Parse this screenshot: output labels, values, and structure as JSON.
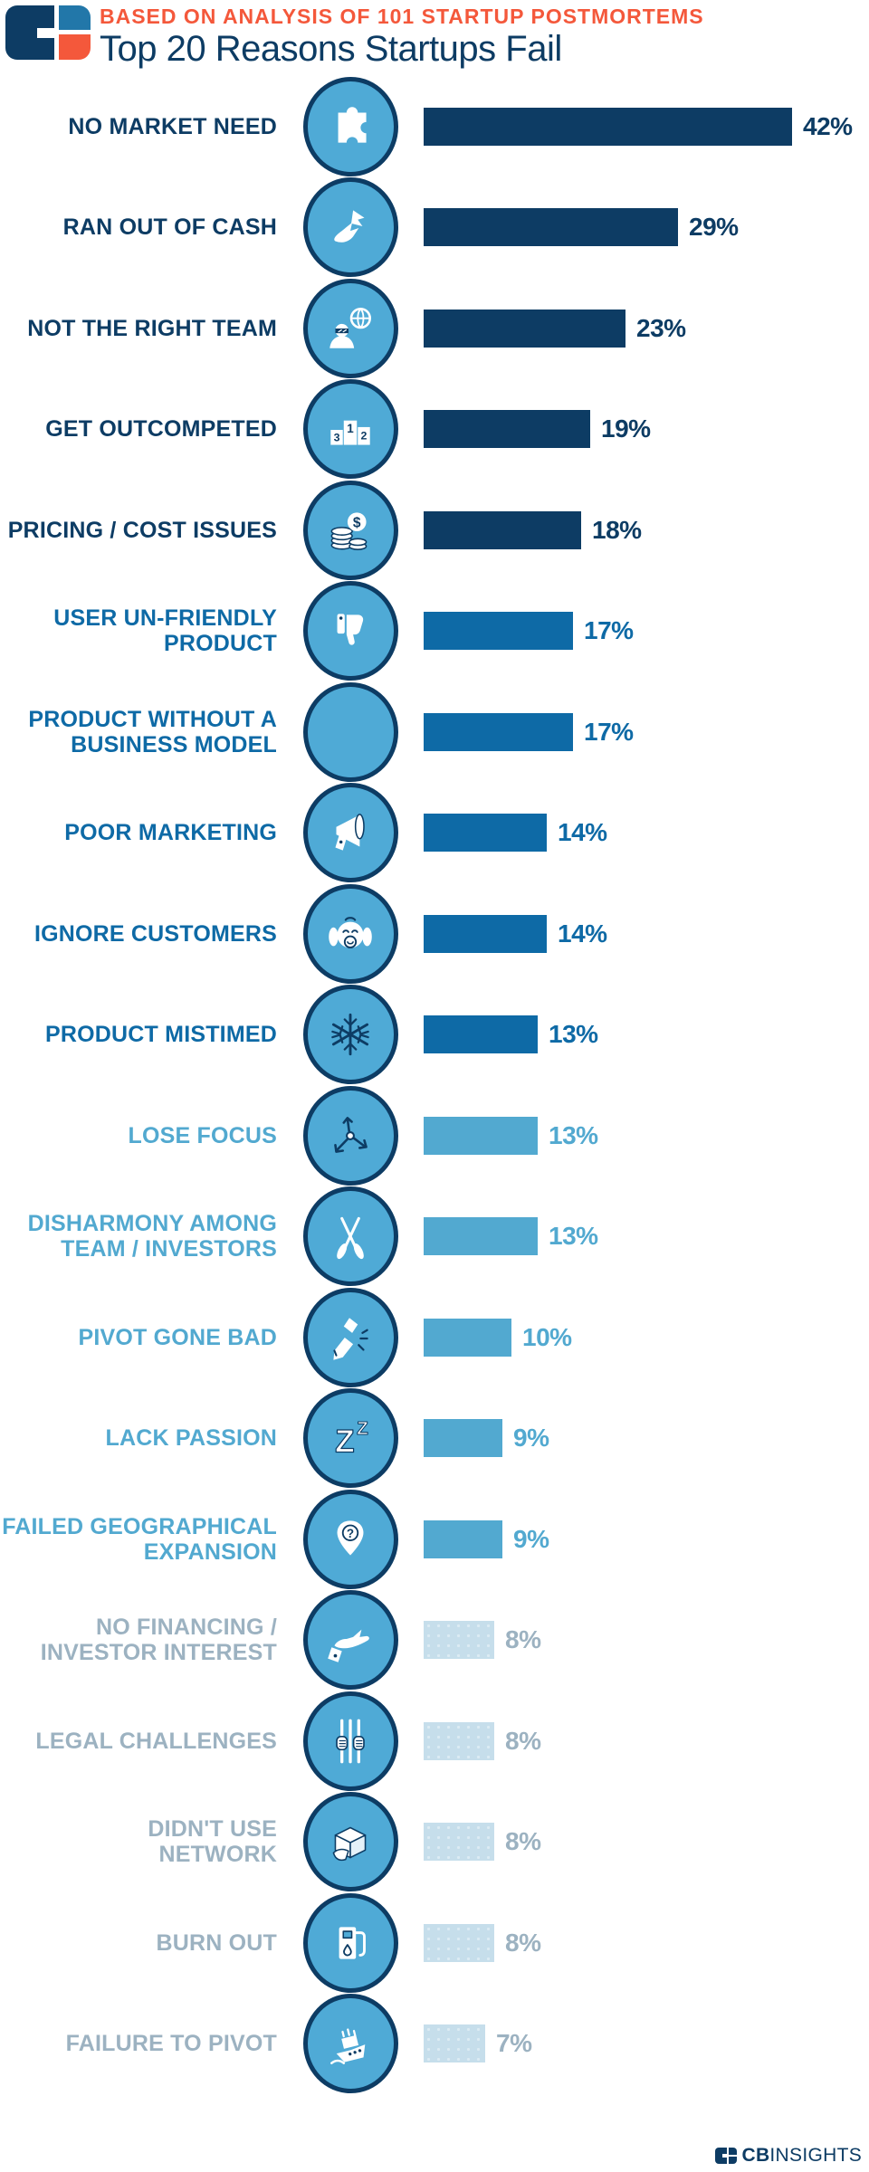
{
  "header": {
    "kicker": "BASED ON ANALYSIS OF 101 STARTUP POSTMORTEMS",
    "title": "Top 20 Reasons Startups Fail"
  },
  "footer": {
    "brand_bold": "CB",
    "brand_light": "INSIGHTS"
  },
  "palette": {
    "navy": "#0d3c64",
    "medium_blue": "#0e6aa6",
    "light_blue": "#52a9d0",
    "pale_blue": "#c6deeb",
    "gray_label": "#9cb2c1",
    "orange": "#f4583b",
    "icon_fill": "#4faad6"
  },
  "chart_data": {
    "type": "bar",
    "orientation": "horizontal",
    "title": "Top 20 Reasons Startups Fail",
    "subtitle": "BASED ON ANALYSIS OF 101 STARTUP POSTMORTEMS",
    "value_unit": "%",
    "xlim": [
      0,
      45
    ],
    "legend": "none",
    "grid": false,
    "categories": [
      "NO MARKET NEED",
      "RAN OUT OF CASH",
      "NOT THE RIGHT TEAM",
      "GET OUTCOMPETED",
      "PRICING / COST ISSUES",
      "USER UN-FRIENDLY PRODUCT",
      "PRODUCT WITHOUT A BUSINESS MODEL",
      "POOR MARKETING",
      "IGNORE CUSTOMERS",
      "PRODUCT MISTIMED",
      "LOSE FOCUS",
      "DISHARMONY AMONG TEAM / INVESTORS",
      "PIVOT GONE BAD",
      "LACK PASSION",
      "FAILED GEOGRAPHICAL EXPANSION",
      "NO FINANCING / INVESTOR INTEREST",
      "LEGAL CHALLENGES",
      "DIDN'T USE NETWORK",
      "BURN OUT",
      "FAILURE TO PIVOT"
    ],
    "values": [
      42,
      29,
      23,
      19,
      18,
      17,
      17,
      14,
      14,
      13,
      13,
      13,
      10,
      9,
      9,
      8,
      8,
      8,
      8,
      7
    ],
    "rows": [
      {
        "label": [
          "NO MARKET NEED"
        ],
        "value": 42,
        "value_label": "42%",
        "icon": "puzzle-globe-icon",
        "tier": 1
      },
      {
        "label": [
          "RAN OUT OF CASH"
        ],
        "value": 29,
        "value_label": "29%",
        "icon": "cash-flying-icon",
        "tier": 1
      },
      {
        "label": [
          "NOT THE RIGHT TEAM"
        ],
        "value": 23,
        "value_label": "23%",
        "icon": "wrong-team-icon",
        "tier": 1
      },
      {
        "label": [
          "GET OUTCOMPETED"
        ],
        "value": 19,
        "value_label": "19%",
        "icon": "podium-icon",
        "tier": 1
      },
      {
        "label": [
          "PRICING / COST ISSUES"
        ],
        "value": 18,
        "value_label": "18%",
        "icon": "coins-icon",
        "tier": 1
      },
      {
        "label": [
          "USER UN-FRIENDLY",
          "PRODUCT"
        ],
        "value": 17,
        "value_label": "17%",
        "icon": "thumbs-down-icon",
        "tier": 2
      },
      {
        "label": [
          "PRODUCT WITHOUT A",
          "BUSINESS MODEL"
        ],
        "value": 17,
        "value_label": "17%",
        "icon": "cart-wheel-icon",
        "tier": 2
      },
      {
        "label": [
          "POOR MARKETING"
        ],
        "value": 14,
        "value_label": "14%",
        "icon": "megaphone-icon",
        "tier": 2
      },
      {
        "label": [
          "IGNORE CUSTOMERS"
        ],
        "value": 14,
        "value_label": "14%",
        "icon": "monkey-ears-icon",
        "tier": 2
      },
      {
        "label": [
          "PRODUCT MISTIMED"
        ],
        "value": 13,
        "value_label": "13%",
        "icon": "snowflake-icon",
        "tier": 2
      },
      {
        "label": [
          "LOSE FOCUS"
        ],
        "value": 13,
        "value_label": "13%",
        "icon": "scatter-arrows-icon",
        "tier": 3
      },
      {
        "label": [
          "DISHARMONY AMONG",
          "TEAM / INVESTORS"
        ],
        "value": 13,
        "value_label": "13%",
        "icon": "crossed-oars-icon",
        "tier": 3
      },
      {
        "label": [
          "PIVOT GONE BAD"
        ],
        "value": 10,
        "value_label": "10%",
        "icon": "broken-pencil-icon",
        "tier": 3
      },
      {
        "label": [
          "LACK PASSION"
        ],
        "value": 9,
        "value_label": "9%",
        "icon": "sleep-zz-icon",
        "tier": 3
      },
      {
        "label": [
          "FAILED GEOGRAPHICAL",
          "EXPANSION"
        ],
        "value": 9,
        "value_label": "9%",
        "icon": "map-pin-question-icon",
        "tier": 3
      },
      {
        "label": [
          "NO FINANCING /",
          "INVESTOR INTEREST"
        ],
        "value": 8,
        "value_label": "8%",
        "icon": "empty-hand-icon",
        "tier": 4
      },
      {
        "label": [
          "LEGAL CHALLENGES"
        ],
        "value": 8,
        "value_label": "8%",
        "icon": "jail-bars-icon",
        "tier": 4
      },
      {
        "label": [
          "DIDN'T USE",
          "NETWORK"
        ],
        "value": 8,
        "value_label": "8%",
        "icon": "empty-box-icon",
        "tier": 4
      },
      {
        "label": [
          "BURN OUT"
        ],
        "value": 8,
        "value_label": "8%",
        "icon": "gas-pump-icon",
        "tier": 4
      },
      {
        "label": [
          "FAILURE TO PIVOT"
        ],
        "value": 7,
        "value_label": "7%",
        "icon": "sinking-ship-icon",
        "tier": 4
      }
    ]
  }
}
